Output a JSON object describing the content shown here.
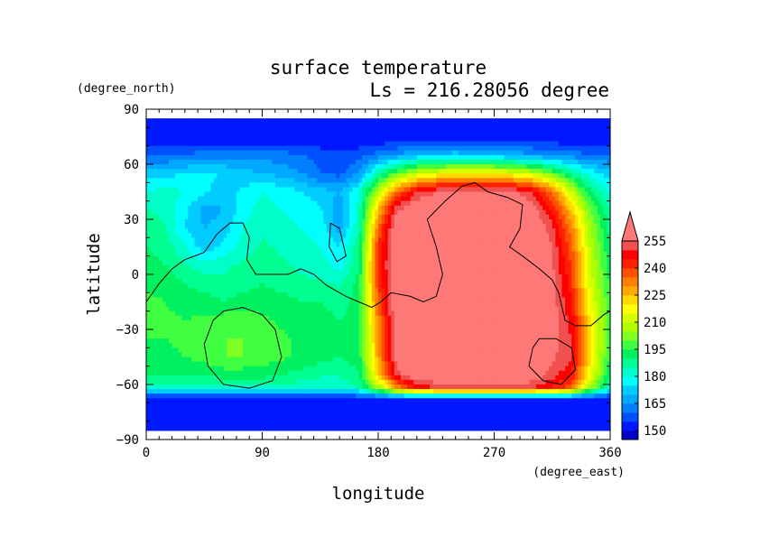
{
  "chart_data": {
    "type": "heatmap",
    "title": "surface temperature",
    "subtitle": "Ls = 216.28056 degree",
    "xlabel": "longitude",
    "ylabel": "latitude",
    "x_unit": "(degree_east)",
    "y_unit": "(degree_north)",
    "xlim": [
      0,
      360
    ],
    "ylim": [
      -90,
      90
    ],
    "x_ticks": [
      "0",
      "90",
      "180",
      "270",
      "360"
    ],
    "x_tick_values": [
      0,
      90,
      180,
      270,
      360
    ],
    "y_ticks": [
      "90",
      "60",
      "30",
      "0",
      "−30",
      "−60",
      "−90"
    ],
    "y_tick_values": [
      90,
      60,
      30,
      0,
      -30,
      -60,
      -90
    ],
    "colorbar": {
      "label_values": [
        "150",
        "165",
        "180",
        "195",
        "210",
        "225",
        "240",
        "255"
      ],
      "levels": [
        145,
        150,
        155,
        160,
        165,
        170,
        175,
        180,
        185,
        190,
        195,
        200,
        205,
        210,
        215,
        220,
        225,
        230,
        235,
        240,
        245,
        250,
        255,
        260
      ],
      "colors": [
        "#0000c8",
        "#0018ff",
        "#0050ff",
        "#0080ff",
        "#00a8ff",
        "#00ccff",
        "#00ffff",
        "#00ffc8",
        "#00ff90",
        "#00f060",
        "#40ff40",
        "#80ff20",
        "#b0ff00",
        "#d8ff00",
        "#ffff00",
        "#ffd800",
        "#ffa800",
        "#ff8000",
        "#ff5000",
        "#ff2000",
        "#ff0000",
        "#f05050",
        "#ff7878"
      ],
      "overflow_color": "#ff7878"
    },
    "field_description": "Approximate gridded surface temperature (K) by latitude row (north to south) and longitude column (0 to 360)",
    "grid": {
      "lon": [
        0,
        15,
        30,
        45,
        60,
        75,
        90,
        105,
        120,
        135,
        150,
        165,
        180,
        195,
        210,
        225,
        240,
        255,
        270,
        285,
        300,
        315,
        330,
        345,
        360
      ],
      "lat": [
        85,
        75,
        65,
        55,
        45,
        35,
        25,
        15,
        5,
        -5,
        -15,
        -25,
        -35,
        -45,
        -55,
        -62,
        -68,
        -75,
        -85
      ],
      "values": [
        [
          150,
          150,
          150,
          150,
          150,
          150,
          150,
          150,
          150,
          150,
          150,
          150,
          150,
          150,
          150,
          150,
          150,
          150,
          150,
          150,
          150,
          150,
          150,
          150,
          150
        ],
        [
          150,
          150,
          150,
          150,
          150,
          150,
          150,
          150,
          150,
          150,
          150,
          150,
          150,
          150,
          150,
          150,
          150,
          150,
          150,
          150,
          150,
          150,
          150,
          150,
          150
        ],
        [
          160,
          160,
          161,
          162,
          162,
          163,
          163,
          162,
          160,
          158,
          156,
          158,
          162,
          166,
          170,
          172,
          173,
          172,
          170,
          168,
          166,
          164,
          162,
          161,
          160
        ],
        [
          172,
          173,
          175,
          176,
          175,
          172,
          170,
          168,
          165,
          160,
          158,
          165,
          185,
          200,
          210,
          215,
          218,
          220,
          218,
          215,
          210,
          200,
          188,
          178,
          172
        ],
        [
          180,
          182,
          180,
          176,
          172,
          176,
          180,
          178,
          175,
          172,
          170,
          180,
          210,
          235,
          250,
          255,
          258,
          258,
          258,
          256,
          250,
          235,
          210,
          190,
          180
        ],
        [
          185,
          184,
          176,
          168,
          170,
          178,
          182,
          180,
          178,
          176,
          166,
          182,
          225,
          255,
          262,
          262,
          262,
          262,
          262,
          262,
          258,
          245,
          225,
          200,
          185
        ],
        [
          188,
          185,
          175,
          170,
          172,
          180,
          184,
          182,
          180,
          178,
          168,
          185,
          235,
          262,
          262,
          262,
          262,
          262,
          262,
          262,
          262,
          252,
          232,
          205,
          188
        ],
        [
          190,
          188,
          180,
          172,
          176,
          182,
          186,
          184,
          182,
          180,
          175,
          188,
          240,
          262,
          262,
          262,
          262,
          262,
          262,
          262,
          262,
          255,
          236,
          208,
          190
        ],
        [
          192,
          190,
          186,
          182,
          184,
          186,
          188,
          186,
          184,
          182,
          178,
          190,
          242,
          262,
          262,
          262,
          262,
          262,
          262,
          262,
          262,
          256,
          240,
          210,
          192
        ],
        [
          194,
          193,
          190,
          188,
          186,
          188,
          190,
          188,
          186,
          186,
          184,
          192,
          240,
          262,
          262,
          262,
          262,
          262,
          262,
          262,
          262,
          257,
          242,
          212,
          194
        ],
        [
          196,
          195,
          193,
          192,
          190,
          192,
          193,
          192,
          190,
          190,
          188,
          192,
          236,
          262,
          262,
          262,
          262,
          262,
          262,
          262,
          262,
          258,
          245,
          215,
          196
        ],
        [
          196,
          196,
          195,
          196,
          198,
          198,
          196,
          194,
          192,
          192,
          190,
          192,
          232,
          262,
          262,
          262,
          262,
          262,
          262,
          262,
          262,
          258,
          248,
          218,
          196
        ],
        [
          195,
          195,
          196,
          198,
          200,
          200,
          198,
          196,
          194,
          192,
          190,
          192,
          230,
          262,
          262,
          262,
          262,
          262,
          262,
          262,
          262,
          258,
          250,
          220,
          195
        ],
        [
          194,
          194,
          195,
          197,
          200,
          200,
          198,
          196,
          194,
          192,
          190,
          192,
          228,
          260,
          262,
          262,
          262,
          262,
          262,
          262,
          262,
          256,
          250,
          220,
          194
        ],
        [
          190,
          190,
          190,
          190,
          192,
          192,
          192,
          190,
          188,
          186,
          186,
          190,
          222,
          252,
          262,
          262,
          262,
          262,
          262,
          262,
          260,
          252,
          246,
          215,
          190
        ],
        [
          182,
          182,
          182,
          182,
          183,
          183,
          183,
          182,
          182,
          180,
          180,
          185,
          205,
          230,
          245,
          250,
          252,
          252,
          252,
          252,
          250,
          245,
          235,
          205,
          182
        ],
        [
          150,
          150,
          150,
          150,
          150,
          150,
          150,
          150,
          150,
          150,
          150,
          150,
          150,
          150,
          150,
          150,
          150,
          150,
          150,
          150,
          150,
          150,
          150,
          150,
          150
        ],
        [
          150,
          150,
          150,
          150,
          150,
          150,
          150,
          150,
          150,
          150,
          150,
          150,
          150,
          150,
          150,
          150,
          150,
          150,
          150,
          150,
          150,
          150,
          150,
          150,
          150
        ],
        [
          150,
          150,
          150,
          150,
          150,
          150,
          150,
          150,
          150,
          150,
          150,
          150,
          150,
          150,
          150,
          150,
          150,
          150,
          150,
          150,
          150,
          150,
          150,
          150,
          150
        ]
      ]
    },
    "coastline_outlines": [
      [
        [
          0,
          -15
        ],
        [
          10,
          -5
        ],
        [
          20,
          3
        ],
        [
          30,
          8
        ],
        [
          45,
          12
        ],
        [
          55,
          22
        ],
        [
          65,
          28
        ],
        [
          75,
          28
        ],
        [
          80,
          20
        ],
        [
          78,
          8
        ],
        [
          85,
          0
        ],
        [
          95,
          0
        ],
        [
          110,
          0
        ],
        [
          120,
          3
        ],
        [
          130,
          0
        ],
        [
          140,
          -6
        ],
        [
          155,
          -12
        ],
        [
          165,
          -15
        ],
        [
          175,
          -18
        ],
        [
          182,
          -15
        ],
        [
          190,
          -10
        ],
        [
          205,
          -12
        ],
        [
          215,
          -15
        ],
        [
          225,
          -12
        ],
        [
          230,
          0
        ],
        [
          225,
          15
        ],
        [
          218,
          30
        ],
        [
          232,
          40
        ],
        [
          245,
          48
        ],
        [
          255,
          50
        ],
        [
          265,
          45
        ],
        [
          280,
          42
        ],
        [
          292,
          38
        ],
        [
          290,
          25
        ],
        [
          282,
          15
        ],
        [
          292,
          10
        ],
        [
          305,
          3
        ],
        [
          315,
          -3
        ],
        [
          320,
          -10
        ],
        [
          325,
          -25
        ],
        [
          333,
          -28
        ],
        [
          345,
          -28
        ],
        [
          355,
          -22
        ],
        [
          360,
          -20
        ]
      ],
      [
        [
          60,
          -20
        ],
        [
          75,
          -18
        ],
        [
          90,
          -22
        ],
        [
          100,
          -30
        ],
        [
          105,
          -45
        ],
        [
          98,
          -58
        ],
        [
          80,
          -62
        ],
        [
          60,
          -60
        ],
        [
          48,
          -50
        ],
        [
          45,
          -38
        ],
        [
          52,
          -25
        ],
        [
          60,
          -20
        ]
      ],
      [
        [
          305,
          -35
        ],
        [
          318,
          -35
        ],
        [
          330,
          -40
        ],
        [
          333,
          -52
        ],
        [
          322,
          -60
        ],
        [
          308,
          -58
        ],
        [
          297,
          -50
        ],
        [
          300,
          -40
        ],
        [
          305,
          -35
        ]
      ],
      [
        [
          143,
          28
        ],
        [
          150,
          25
        ],
        [
          155,
          10
        ],
        [
          148,
          7
        ],
        [
          142,
          15
        ],
        [
          143,
          28
        ]
      ]
    ]
  }
}
